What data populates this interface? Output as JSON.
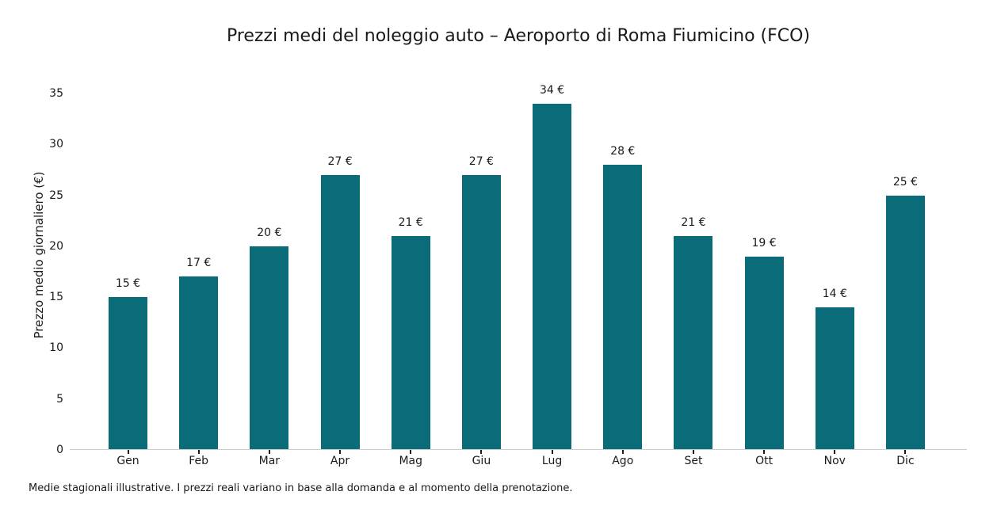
{
  "chart_data": {
    "type": "bar",
    "title": "Prezzi medi del noleggio auto – Aeroporto di Roma Fiumicino (FCO)",
    "ylabel": "Prezzo medio giornaliero (€)",
    "xlabel": "",
    "categories": [
      "Gen",
      "Feb",
      "Mar",
      "Apr",
      "Mag",
      "Giu",
      "Lug",
      "Ago",
      "Set",
      "Ott",
      "Nov",
      "Dic"
    ],
    "values": [
      15,
      17,
      20,
      27,
      21,
      27,
      34,
      28,
      21,
      19,
      14,
      25
    ],
    "bar_value_labels": [
      "15 €",
      "17 €",
      "20 €",
      "27 €",
      "21 €",
      "27 €",
      "34 €",
      "28 €",
      "21 €",
      "19 €",
      "14 €",
      "25 €"
    ],
    "ylim": [
      0,
      35
    ],
    "yticks": [
      0,
      5,
      10,
      15,
      20,
      25,
      30,
      35
    ],
    "bar_color": "#0a6c78",
    "axis_line_color": "#cccccc",
    "tick_mark_color": "#1a1a1a",
    "text_color": "#1a1a1a",
    "grid": false,
    "legend_position": "none"
  },
  "footnote": "Medie stagionali illustrative. I prezzi reali variano in base alla domanda e al momento della prenotazione."
}
